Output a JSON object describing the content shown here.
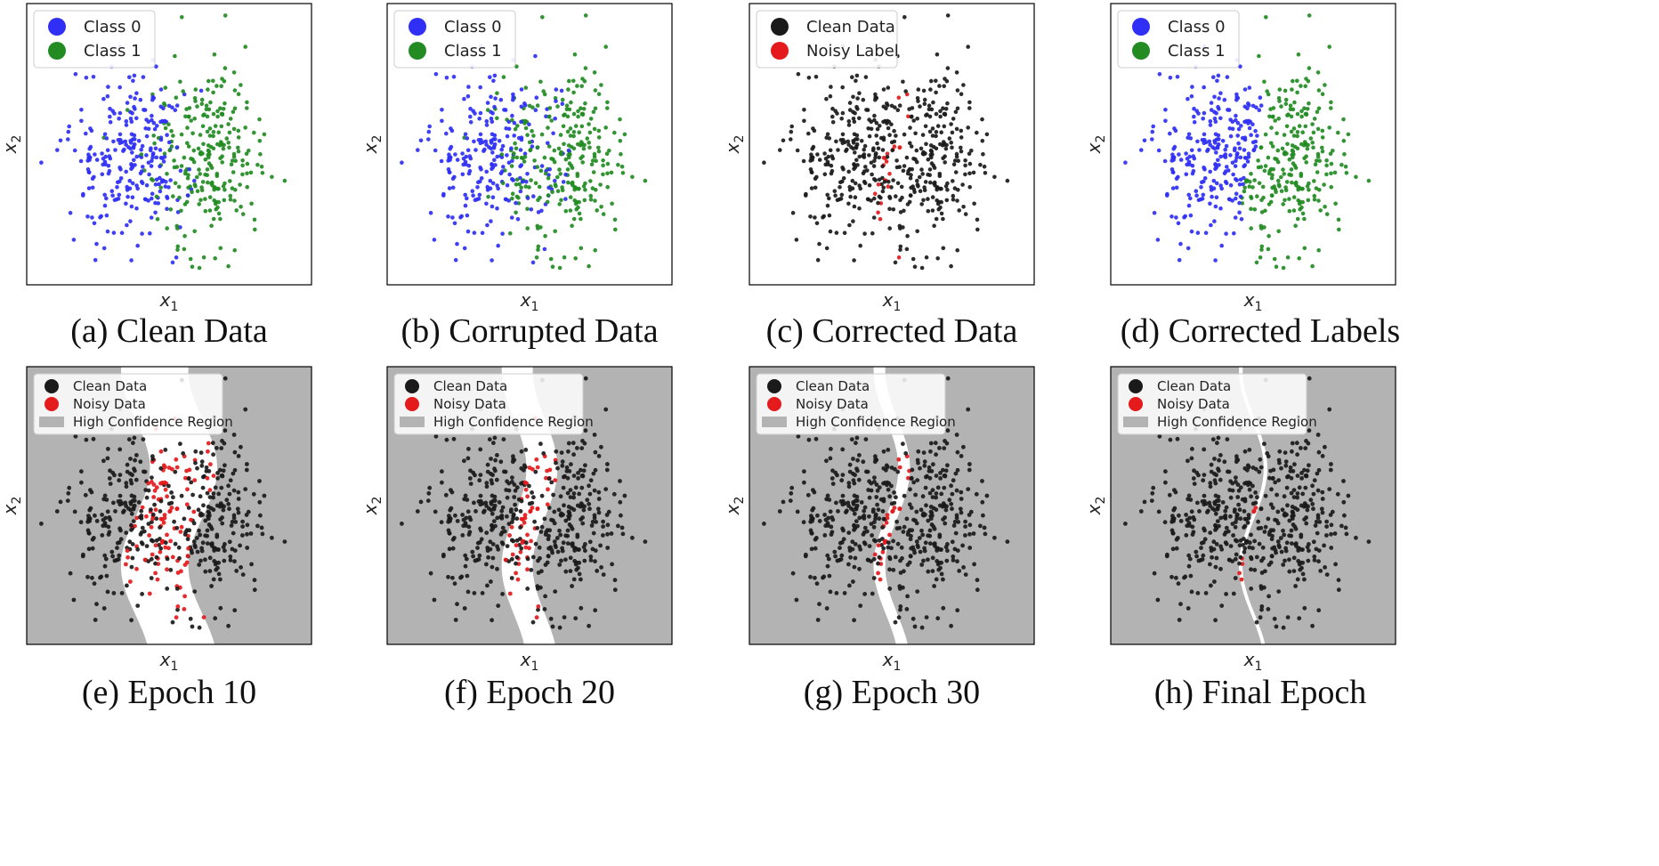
{
  "colors": {
    "class0": "#2f2ff5",
    "class1": "#228b22",
    "clean": "#1a1a1a",
    "noisy": "#e41a1c",
    "region": "#b3b3b3",
    "frame": "#000000"
  },
  "chart_data": [
    {
      "type": "scatter",
      "id": "a",
      "caption": "(a) Clean Data",
      "xlabel": "x1",
      "ylabel": "x2",
      "legend": {
        "placement": "top-left",
        "entries": [
          {
            "label": "Class 0",
            "color": "class0"
          },
          {
            "label": "Class 1",
            "color": "class1"
          }
        ]
      },
      "background": "none",
      "mode": "clean"
    },
    {
      "type": "scatter",
      "id": "b",
      "caption": "(b) Corrupted Data",
      "xlabel": "x1",
      "ylabel": "x2",
      "legend": {
        "placement": "top-left",
        "entries": [
          {
            "label": "Class 0",
            "color": "class0"
          },
          {
            "label": "Class 1",
            "color": "class1"
          }
        ]
      },
      "background": "none",
      "mode": "corrupted"
    },
    {
      "type": "scatter",
      "id": "c",
      "caption": "(c) Corrected Data",
      "xlabel": "x1",
      "ylabel": "x2",
      "legend": {
        "placement": "top-left",
        "entries": [
          {
            "label": "Clean Data",
            "color": "clean"
          },
          {
            "label": "Noisy Label",
            "color": "noisy"
          }
        ]
      },
      "background": "none",
      "mode": "corrected-data"
    },
    {
      "type": "scatter",
      "id": "d",
      "caption": "(d) Corrected Labels",
      "xlabel": "x1",
      "ylabel": "x2",
      "legend": {
        "placement": "top-left",
        "entries": [
          {
            "label": "Class 0",
            "color": "class0"
          },
          {
            "label": "Class 1",
            "color": "class1"
          }
        ]
      },
      "background": "none",
      "mode": "corrected-labels"
    },
    {
      "type": "scatter",
      "id": "e",
      "caption": "(e) Epoch 10",
      "xlabel": "x1",
      "ylabel": "x2",
      "legend": {
        "placement": "top-left",
        "entries": [
          {
            "label": "Clean Data",
            "color": "clean"
          },
          {
            "label": "Noisy Data",
            "color": "noisy"
          },
          {
            "label": "High Confidence Region",
            "color": "region",
            "patch": true
          }
        ]
      },
      "background": "region",
      "band": {
        "width": 2.6,
        "wiggle": 0.35
      },
      "mode": "band"
    },
    {
      "type": "scatter",
      "id": "f",
      "caption": "(f) Epoch 20",
      "xlabel": "x1",
      "ylabel": "x2",
      "legend": {
        "placement": "top-left",
        "entries": [
          {
            "label": "Clean Data",
            "color": "clean"
          },
          {
            "label": "Noisy Data",
            "color": "noisy"
          },
          {
            "label": "High Confidence Region",
            "color": "region",
            "patch": true
          }
        ]
      },
      "background": "region",
      "band": {
        "width": 1.2,
        "wiggle": 0.3
      },
      "mode": "band"
    },
    {
      "type": "scatter",
      "id": "g",
      "caption": "(g) Epoch 30",
      "xlabel": "x1",
      "ylabel": "x2",
      "legend": {
        "placement": "top-left",
        "entries": [
          {
            "label": "Clean Data",
            "color": "clean"
          },
          {
            "label": "Noisy Data",
            "color": "noisy"
          },
          {
            "label": "High Confidence Region",
            "color": "region",
            "patch": true
          }
        ]
      },
      "background": "region",
      "band": {
        "width": 0.45,
        "wiggle": 0.3
      },
      "mode": "band"
    },
    {
      "type": "scatter",
      "id": "h",
      "caption": "(h) Final Epoch",
      "xlabel": "x1",
      "ylabel": "x2",
      "legend": {
        "placement": "top-left",
        "entries": [
          {
            "label": "Clean Data",
            "color": "clean"
          },
          {
            "label": "Noisy Data",
            "color": "noisy"
          },
          {
            "label": "High Confidence Region",
            "color": "region",
            "patch": true
          }
        ]
      },
      "background": "region",
      "band": {
        "width": 0.14,
        "wiggle": 0.3
      },
      "mode": "band"
    }
  ]
}
